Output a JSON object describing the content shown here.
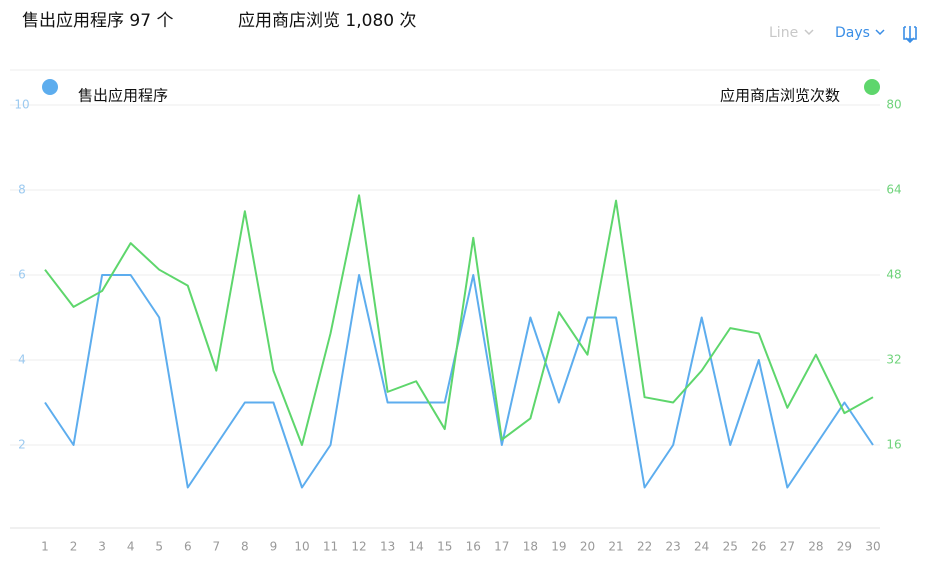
{
  "summary": [
    "售出应用程序 97 个",
    "应用商店浏览 1,080 次"
  ],
  "controls": [
    "Line",
    "Days"
  ],
  "chart_data": {
    "type": "line",
    "categories": [
      "1",
      "2",
      "3",
      "4",
      "5",
      "6",
      "7",
      "8",
      "9",
      "10",
      "11",
      "12",
      "13",
      "14",
      "15",
      "16",
      "17",
      "18",
      "19",
      "20",
      "21",
      "22",
      "23",
      "24",
      "25",
      "26",
      "27",
      "28",
      "29",
      "30"
    ],
    "series": [
      {
        "name": "售出应用程序",
        "color": "#5dadee",
        "values": [
          3,
          2,
          6,
          6,
          5,
          1,
          2,
          3,
          3,
          1,
          2,
          6,
          3,
          3,
          3,
          6,
          2,
          5,
          3,
          5,
          5,
          1,
          2,
          5,
          2,
          4,
          1,
          2,
          3,
          2
        ]
      },
      {
        "name": "应用商店浏览次数",
        "color": "#5ed66c",
        "axis": "y2",
        "values": [
          49,
          42,
          45,
          54,
          49,
          46,
          30,
          60,
          30,
          16,
          37,
          63,
          26,
          28,
          19,
          55,
          17,
          21,
          41,
          33,
          62,
          25,
          24,
          30,
          38,
          37,
          23,
          33,
          22,
          25
        ]
      }
    ],
    "ylim": [
      0,
      10
    ],
    "yticks": [
      2,
      4,
      6,
      8,
      10
    ],
    "y2lim": [
      0,
      80
    ],
    "y2ticks": [
      16,
      32,
      48,
      64,
      80
    ],
    "grid": true
  }
}
